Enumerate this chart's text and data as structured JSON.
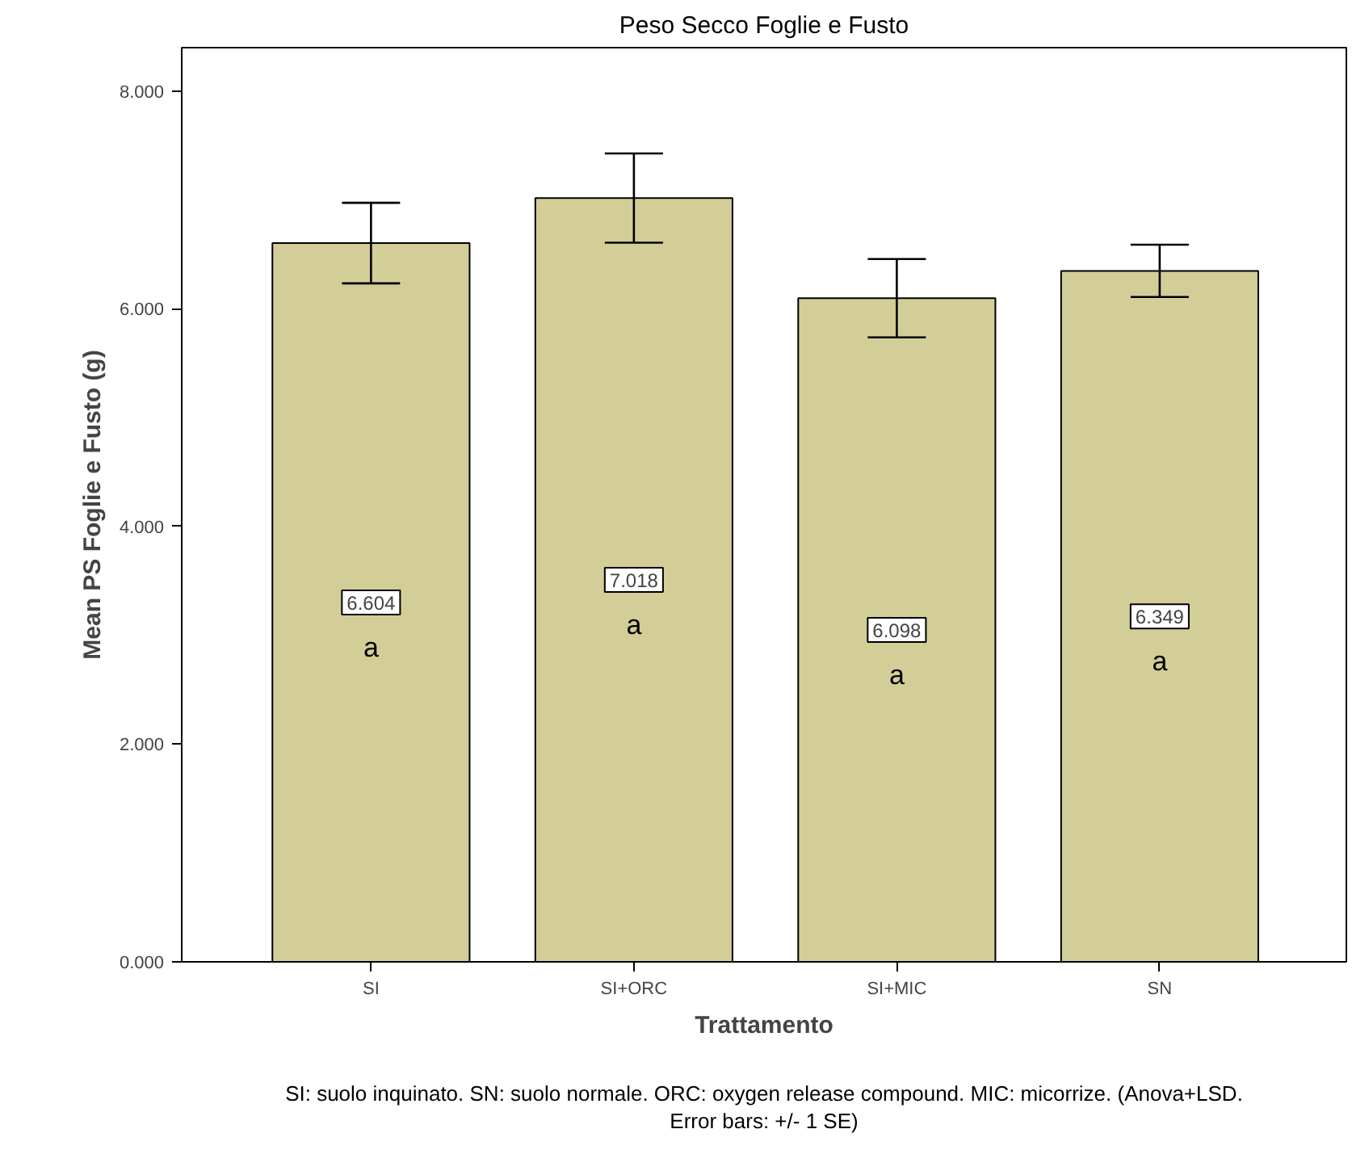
{
  "chart_data": {
    "type": "bar",
    "title": "Peso Secco Foglie e Fusto",
    "xlabel": "Trattamento",
    "ylabel": "Mean PS Foglie e Fusto (g)",
    "categories": [
      "SI",
      "SI+ORC",
      "SI+MIC",
      "SN"
    ],
    "values": [
      6.604,
      7.018,
      6.098,
      6.349
    ],
    "value_labels": [
      "6.604",
      "7.018",
      "6.098",
      "6.349"
    ],
    "errors": [
      0.37,
      0.41,
      0.36,
      0.24
    ],
    "color": "#d3ce97",
    "ylim": [
      0,
      8.4
    ],
    "yticks": [
      {
        "value": 0,
        "label": "0.000"
      },
      {
        "value": 2,
        "label": "2.000"
      },
      {
        "value": 4,
        "label": "4.000"
      },
      {
        "value": 6,
        "label": "6.000"
      },
      {
        "value": 8,
        "label": "8.000"
      }
    ],
    "grid": false,
    "annotations": [
      "a",
      "a",
      "a",
      "a",
      "SI: suolo inquinato. SN: suolo normale. ORC: oxygen release compound. MIC: micorrize. (Anova+LSD. Error bars: +/- 1 SE)"
    ]
  }
}
